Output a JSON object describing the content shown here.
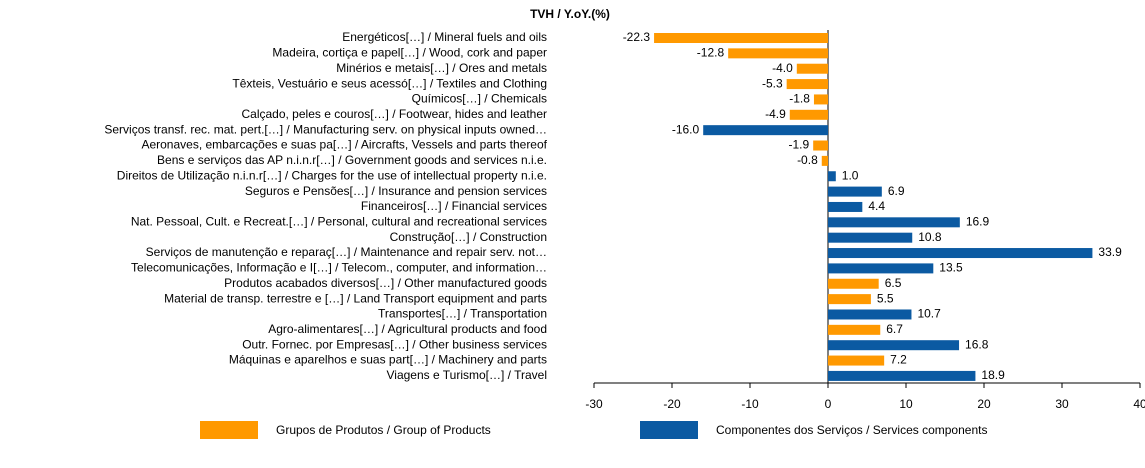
{
  "chart_data": {
    "type": "barh",
    "title": "TVH / Y.oY.(%)",
    "categories": [
      "Energéticos[…] / Mineral fuels and oils",
      "Madeira, cortiça e papel[…] / Wood, cork and paper",
      "Minérios e metais[…] / Ores and metals",
      "Têxteis, Vestuário e seus acessó[…] / Textiles and Clothing",
      "Químicos[…] / Chemicals",
      "Calçado, peles e couros[…] / Footwear, hides and leather",
      "Serviços transf. rec. mat. pert.[…] / Manufacturing serv. on physical inputs owned…",
      "Aeronaves, embarcações e suas pa[…] / Aircrafts, Vessels and parts thereof",
      "Bens e serviços das AP n.i.n.r[…] / Government goods and services n.i.e.",
      "Direitos de Utilização n.i.n.r[…] / Charges for the use of intellectual property n.i.e.",
      "Seguros e Pensões[…] / Insurance and pension services",
      "Financeiros[…] / Financial services",
      "Nat. Pessoal, Cult. e Recreat.[…] / Personal, cultural and recreational services",
      "Construção[…] / Construction",
      "Serviços de manutenção e reparaç[…] / Maintenance and repair serv. not…",
      "Telecomunicações, Informação e I[…] / Telecom., computer, and information…",
      "Produtos acabados diversos[…] / Other manufactured goods",
      "Material de transp. terrestre e […] / Land Transport equipment and parts",
      "Transportes[…] / Transportation",
      "Agro-alimentares[…] / Agricultural products and food",
      "Outr. Fornec. por Empresas[…] / Other business services",
      "Máquinas e aparelhos e suas part[…] / Machinery and parts",
      "Viagens e Turismo[…] / Travel"
    ],
    "series": [
      {
        "name": "Grupos de Produtos / Group of Products",
        "color": "#ff9900",
        "values": [
          -22.3,
          -12.8,
          -4.0,
          -5.3,
          -1.8,
          -4.9,
          null,
          -1.9,
          -0.8,
          null,
          null,
          null,
          null,
          null,
          null,
          null,
          6.5,
          5.5,
          null,
          6.7,
          null,
          7.2,
          null
        ],
        "value_labels": [
          "-22.3",
          "-12.8",
          "-4.0",
          "-5.3",
          "-1.8",
          "-4.9",
          null,
          "-1.9",
          "-0.8",
          null,
          null,
          null,
          null,
          null,
          null,
          null,
          "6.5",
          "5.5",
          null,
          "6.7",
          null,
          "7.2",
          null
        ]
      },
      {
        "name": "Componentes dos Serviços / Services components",
        "color": "#0b5aa2",
        "values": [
          null,
          null,
          null,
          null,
          null,
          null,
          -16.0,
          null,
          null,
          1.0,
          6.9,
          4.4,
          16.9,
          10.8,
          33.9,
          13.5,
          null,
          null,
          10.7,
          null,
          16.8,
          null,
          18.9
        ],
        "value_labels": [
          null,
          null,
          null,
          null,
          null,
          null,
          "-16.0",
          null,
          null,
          "1.0",
          "6.9",
          "4.4",
          "16.9",
          "10.8",
          "33.9",
          "13.5",
          null,
          null,
          "10.7",
          null,
          "16.8",
          null,
          "18.9"
        ]
      }
    ],
    "xlim": [
      -30,
      40
    ],
    "xticks": [
      -30,
      -20,
      -10,
      0,
      10,
      20,
      30,
      40
    ],
    "legend": "bottom"
  }
}
